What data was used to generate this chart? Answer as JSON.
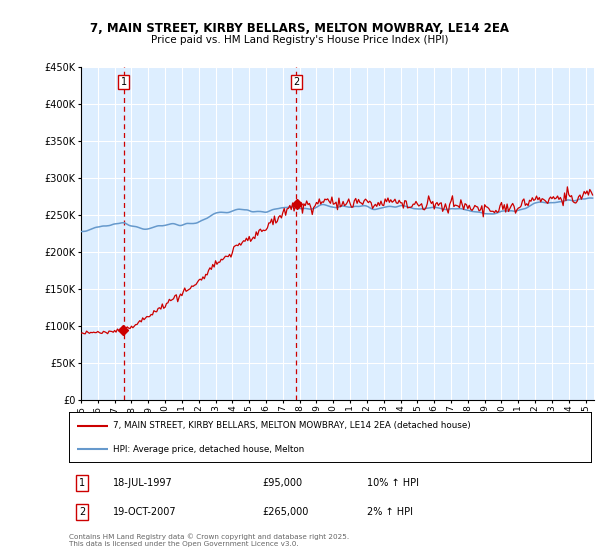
{
  "title": "7, MAIN STREET, KIRBY BELLARS, MELTON MOWBRAY, LE14 2EA",
  "subtitle": "Price paid vs. HM Land Registry's House Price Index (HPI)",
  "legend_line1": "7, MAIN STREET, KIRBY BELLARS, MELTON MOWBRAY, LE14 2EA (detached house)",
  "legend_line2": "HPI: Average price, detached house, Melton",
  "footnote": "Contains HM Land Registry data © Crown copyright and database right 2025.\nThis data is licensed under the Open Government Licence v3.0.",
  "purchase1_date": "18-JUL-1997",
  "purchase1_price": "£95,000",
  "purchase1_hpi": "10% ↑ HPI",
  "purchase2_date": "19-OCT-2007",
  "purchase2_price": "£265,000",
  "purchase2_hpi": "2% ↑ HPI",
  "purchase1_x": 1997.54,
  "purchase2_x": 2007.8,
  "purchase1_y": 95000,
  "purchase2_y": 265000,
  "red_color": "#cc0000",
  "blue_color": "#6699cc",
  "bg_color": "#ddeeff",
  "grid_color": "#ffffff",
  "ylim": [
    0,
    450000
  ],
  "xlim_start": 1995,
  "xlim_end": 2025.5,
  "yticks": [
    0,
    50000,
    100000,
    150000,
    200000,
    250000,
    300000,
    350000,
    400000,
    450000
  ],
  "xticks": [
    1995,
    1996,
    1997,
    1998,
    1999,
    2000,
    2001,
    2002,
    2003,
    2004,
    2005,
    2006,
    2007,
    2008,
    2009,
    2010,
    2011,
    2012,
    2013,
    2014,
    2015,
    2016,
    2017,
    2018,
    2019,
    2020,
    2021,
    2022,
    2023,
    2024,
    2025
  ]
}
